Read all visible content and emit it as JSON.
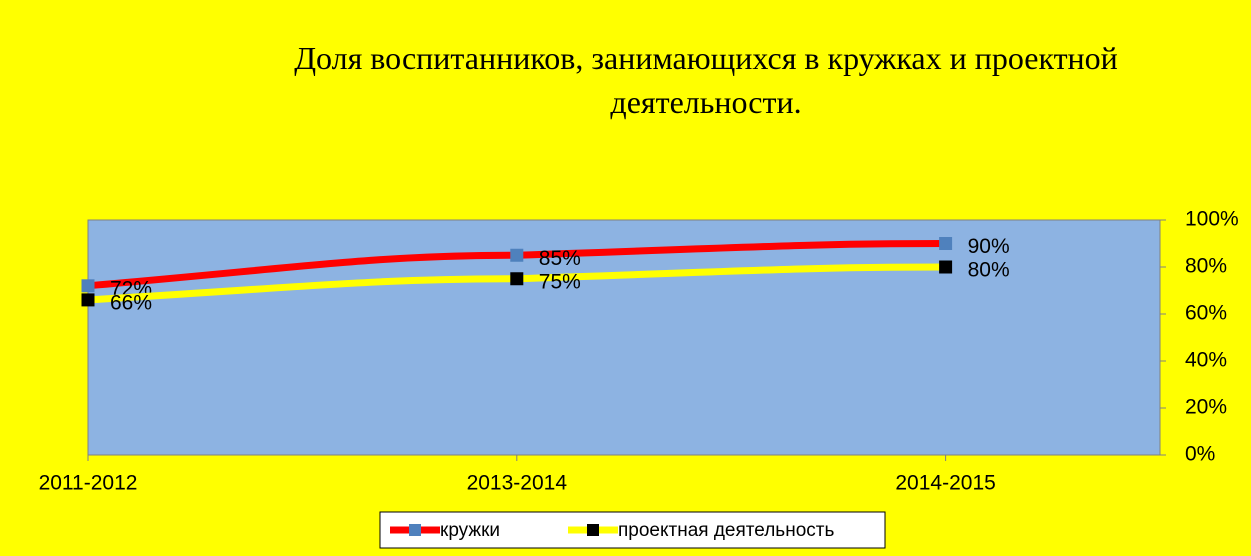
{
  "chart_data": {
    "type": "line",
    "title": "Доля воспитанников, занимающихся в кружках  и проектной деятельности.",
    "categories": [
      "2011-2012",
      "2013-2014",
      "2014-2015"
    ],
    "series": [
      {
        "name": "кружки",
        "color": "#ff0000",
        "marker_color": "#4f81bd",
        "values": [
          72,
          85,
          90
        ],
        "value_labels": [
          "72%",
          "85%",
          "90%"
        ]
      },
      {
        "name": "проектная деятельность",
        "color": "#ffff00",
        "marker_color": "#000000",
        "values": [
          66,
          75,
          80
        ],
        "value_labels": [
          "66%",
          "75%",
          "80%"
        ]
      }
    ],
    "ylim": [
      0,
      100
    ],
    "yticks": [
      {
        "value": 0,
        "label": "0%"
      },
      {
        "value": 20,
        "label": "20%"
      },
      {
        "value": 40,
        "label": "40%"
      },
      {
        "value": 60,
        "label": "60%"
      },
      {
        "value": 80,
        "label": "80%"
      },
      {
        "value": 100,
        "label": "100%"
      }
    ],
    "legend": "bottom"
  }
}
